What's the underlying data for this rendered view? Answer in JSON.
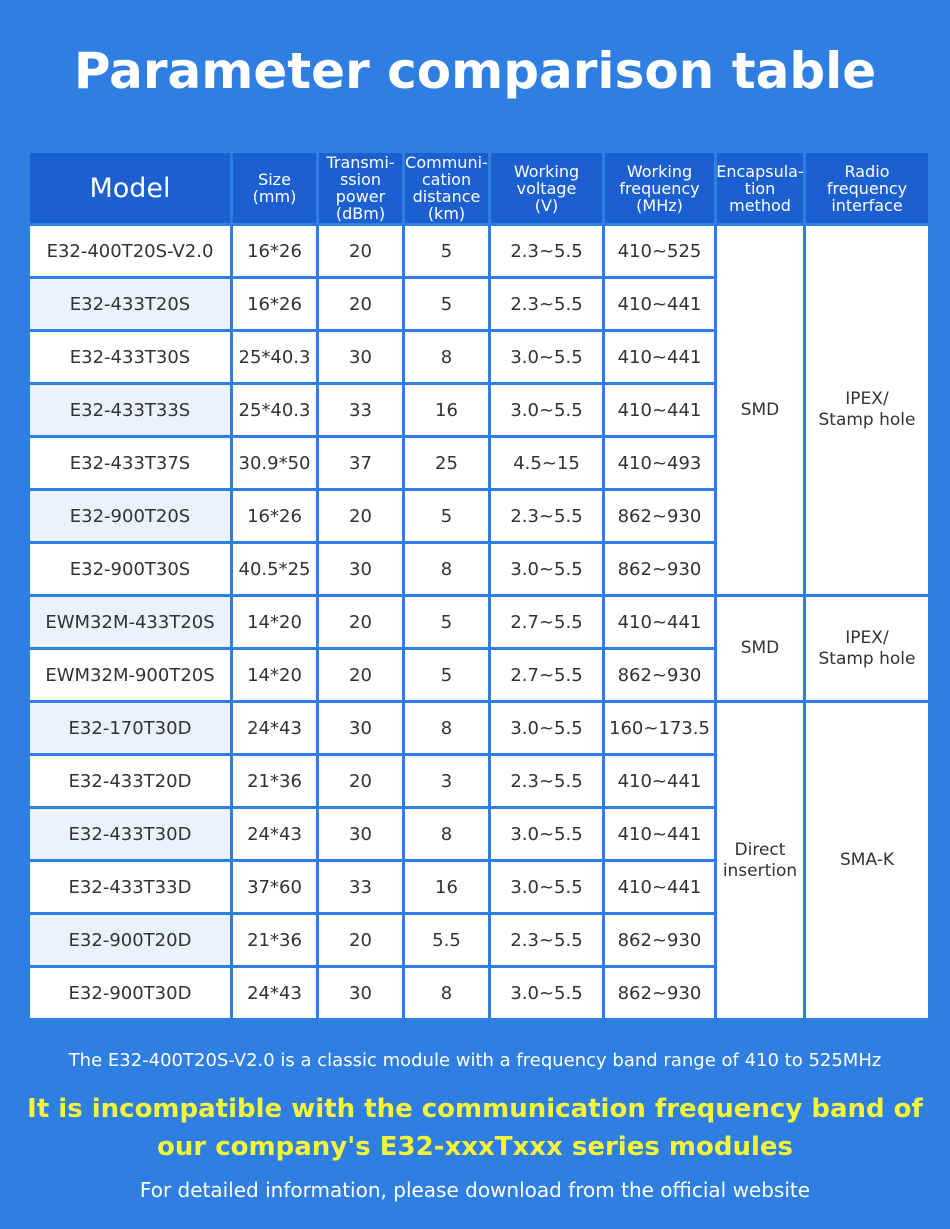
{
  "title": "Parameter comparison table",
  "table": {
    "header": [
      "Model",
      "Size\n(mm)",
      "Transmi-\nssion\npower\n(dBm)",
      "Communi-\ncation\ndistance\n(km)",
      "Working\nvoltage\n(V)",
      "Working\nfrequency\n(MHz)",
      "Encapsula-\ntion\nmethod",
      "Radio\nfrequency\ninterface"
    ],
    "groups": [
      {
        "encapsulation": "SMD",
        "interface": "IPEX/\nStamp hole",
        "rows": [
          [
            "E32-400T20S-V2.0",
            "16*26",
            "20",
            "5",
            "2.3~5.5",
            "410~525"
          ],
          [
            "E32-433T20S",
            "16*26",
            "20",
            "5",
            "2.3~5.5",
            "410~441"
          ],
          [
            "E32-433T30S",
            "25*40.3",
            "30",
            "8",
            "3.0~5.5",
            "410~441"
          ],
          [
            "E32-433T33S",
            "25*40.3",
            "33",
            "16",
            "3.0~5.5",
            "410~441"
          ],
          [
            "E32-433T37S",
            "30.9*50",
            "37",
            "25",
            "4.5~15",
            "410~493"
          ],
          [
            "E32-900T20S",
            "16*26",
            "20",
            "5",
            "2.3~5.5",
            "862~930"
          ],
          [
            "E32-900T30S",
            "40.5*25",
            "30",
            "8",
            "3.0~5.5",
            "862~930"
          ]
        ]
      },
      {
        "encapsulation": "SMD",
        "interface": "IPEX/\nStamp hole",
        "rows": [
          [
            "EWM32M-433T20S",
            "14*20",
            "20",
            "5",
            "2.7~5.5",
            "410~441"
          ],
          [
            "EWM32M-900T20S",
            "14*20",
            "20",
            "5",
            "2.7~5.5",
            "862~930"
          ]
        ]
      },
      {
        "encapsulation": "Direct\ninsertion",
        "interface": "SMA-K",
        "rows": [
          [
            "E32-170T30D",
            "24*43",
            "30",
            "8",
            "3.0~5.5",
            "160~173.5"
          ],
          [
            "E32-433T20D",
            "21*36",
            "20",
            "3",
            "2.3~5.5",
            "410~441"
          ],
          [
            "E32-433T30D",
            "24*43",
            "30",
            "8",
            "3.0~5.5",
            "410~441"
          ],
          [
            "E32-433T33D",
            "37*60",
            "33",
            "16",
            "3.0~5.5",
            "410~441"
          ],
          [
            "E32-900T20D",
            "21*36",
            "20",
            "5.5",
            "2.3~5.5",
            "862~930"
          ],
          [
            "E32-900T30D",
            "24*43",
            "30",
            "8",
            "3.0~5.5",
            "862~930"
          ]
        ]
      }
    ]
  },
  "footer": {
    "note": "The E32-400T20S-V2.0 is a classic module with a frequency band range of 410 to 525MHz",
    "warning": "It is incompatible with the communication frequency band of\nour company's E32-xxxTxxx series modules",
    "info": "For detailed information, please download from the official website"
  }
}
